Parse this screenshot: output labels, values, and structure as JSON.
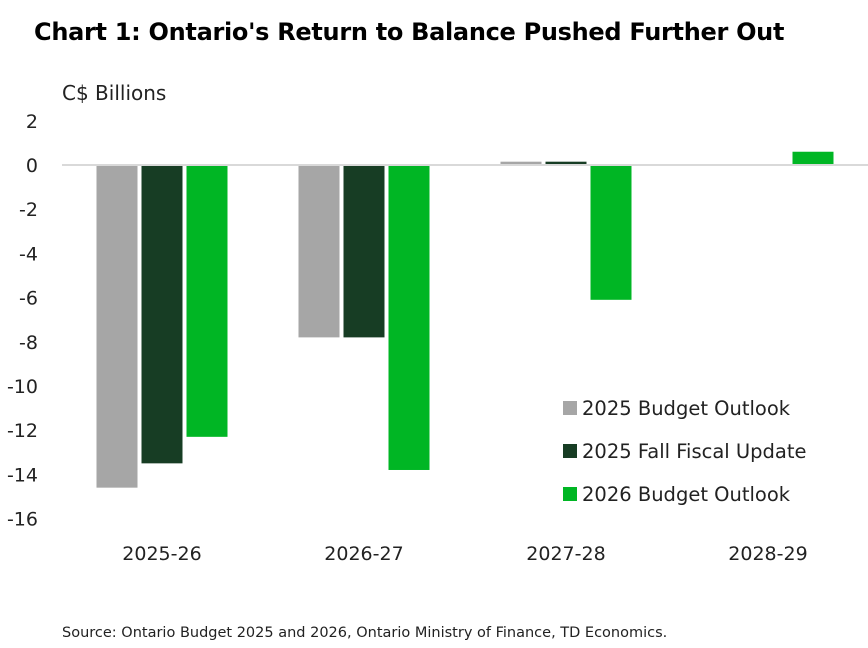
{
  "chart_data": {
    "type": "bar",
    "title": "Chart 1: Ontario's Return to Balance Pushed Further Out",
    "ylabel": "C$ Billions",
    "xlabel": "",
    "categories": [
      "2025-26",
      "2026-27",
      "2027-28",
      "2028-29"
    ],
    "series": [
      {
        "name": "2025 Budget Outlook",
        "color": "#a6a6a6",
        "values": [
          -14.6,
          -7.8,
          0.15,
          null
        ]
      },
      {
        "name": "2025 Fall Fiscal Update",
        "color": "#173d24",
        "values": [
          -13.5,
          -7.8,
          0.15,
          null
        ]
      },
      {
        "name": "2026 Budget Outlook",
        "color": "#00b624",
        "values": [
          -12.3,
          -13.8,
          -6.1,
          0.6
        ]
      }
    ],
    "ylim": [
      -16,
      2
    ],
    "yticks": [
      2,
      0,
      -2,
      -4,
      -6,
      -8,
      -10,
      -12,
      -14,
      -16
    ],
    "grid": false,
    "legend": "bottom-right",
    "source": "Source: Ontario Budget 2025 and 2026, Ontario Ministry of Finance, TD Economics."
  }
}
